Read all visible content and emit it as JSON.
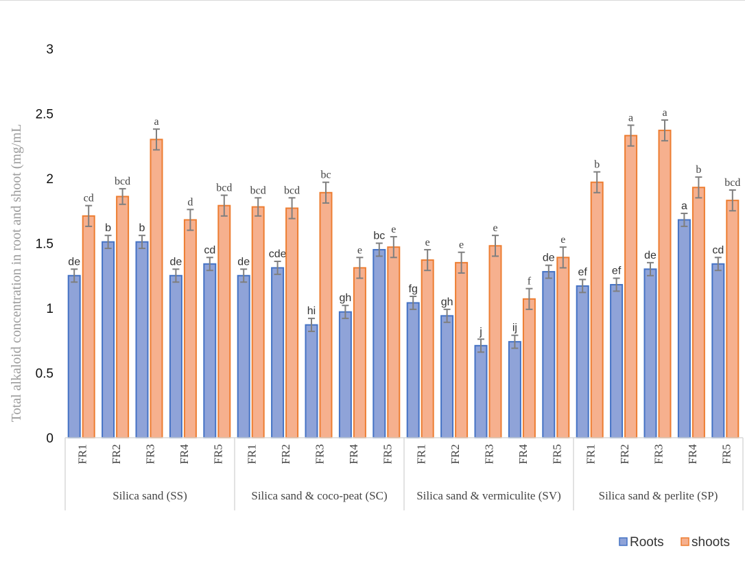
{
  "chart_data": {
    "type": "bar",
    "title": "",
    "ylabel": "Total alkaloid concentration  in root and shoot (mg/mL",
    "xlabel": "",
    "ylim": [
      0,
      3
    ],
    "yticks": [
      0,
      0.5,
      1,
      1.5,
      2,
      2.5,
      3
    ],
    "ytick_labels": [
      "0",
      "0.5",
      "1",
      "1.5",
      "2",
      "2.5",
      "3"
    ],
    "grid": false,
    "legend_position": "bottom-right",
    "groups": [
      {
        "name": "Silica sand (SS)",
        "categories": [
          "FR1",
          "FR2",
          "FR3",
          "FR4",
          "FR5"
        ]
      },
      {
        "name": "Silica sand & coco-peat (SC)",
        "categories": [
          "FR1",
          "FR2",
          "FR3",
          "FR4",
          "FR5"
        ]
      },
      {
        "name": "Silica sand & vermiculite (SV)",
        "categories": [
          "FR1",
          "FR2",
          "FR3",
          "FR4",
          "FR5"
        ]
      },
      {
        "name": "Silica sand & perlite (SP)",
        "categories": [
          "FR1",
          "FR2",
          "FR3",
          "FR4",
          "FR5"
        ]
      }
    ],
    "series": [
      {
        "name": "Roots",
        "color": "#8fa3d8",
        "edge": "#4472c4",
        "values": [
          1.25,
          1.51,
          1.51,
          1.25,
          1.34,
          1.25,
          1.31,
          0.87,
          0.97,
          1.45,
          1.04,
          0.94,
          0.71,
          0.74,
          1.28,
          1.17,
          1.18,
          1.3,
          1.68,
          1.34
        ],
        "errors": [
          0.05,
          0.05,
          0.05,
          0.05,
          0.05,
          0.05,
          0.05,
          0.05,
          0.05,
          0.05,
          0.05,
          0.05,
          0.05,
          0.05,
          0.05,
          0.05,
          0.05,
          0.05,
          0.05,
          0.05
        ],
        "labels": [
          "de",
          "b",
          "b",
          "de",
          "cd",
          "de",
          "cde",
          "hi",
          "gh",
          "bc",
          "fg",
          "gh",
          "j",
          "ij",
          "de",
          "ef",
          "ef",
          "de",
          "a",
          "cd"
        ]
      },
      {
        "name": "shoots",
        "color": "#f6b08e",
        "edge": "#ed7d31",
        "values": [
          1.71,
          1.86,
          2.3,
          1.68,
          1.79,
          1.78,
          1.77,
          1.89,
          1.31,
          1.47,
          1.37,
          1.35,
          1.48,
          1.07,
          1.39,
          1.97,
          2.33,
          2.37,
          1.93,
          1.83
        ],
        "errors": [
          0.08,
          0.06,
          0.08,
          0.08,
          0.08,
          0.07,
          0.08,
          0.08,
          0.08,
          0.08,
          0.08,
          0.08,
          0.08,
          0.08,
          0.08,
          0.08,
          0.08,
          0.08,
          0.08,
          0.08
        ],
        "labels": [
          "cd",
          "bcd",
          "a",
          "d",
          "bcd",
          "bcd",
          "bcd",
          "bc",
          "e",
          "e",
          "e",
          "e",
          "e",
          "f",
          "e",
          "b",
          "a",
          "a",
          "b",
          "bcd"
        ]
      }
    ]
  }
}
